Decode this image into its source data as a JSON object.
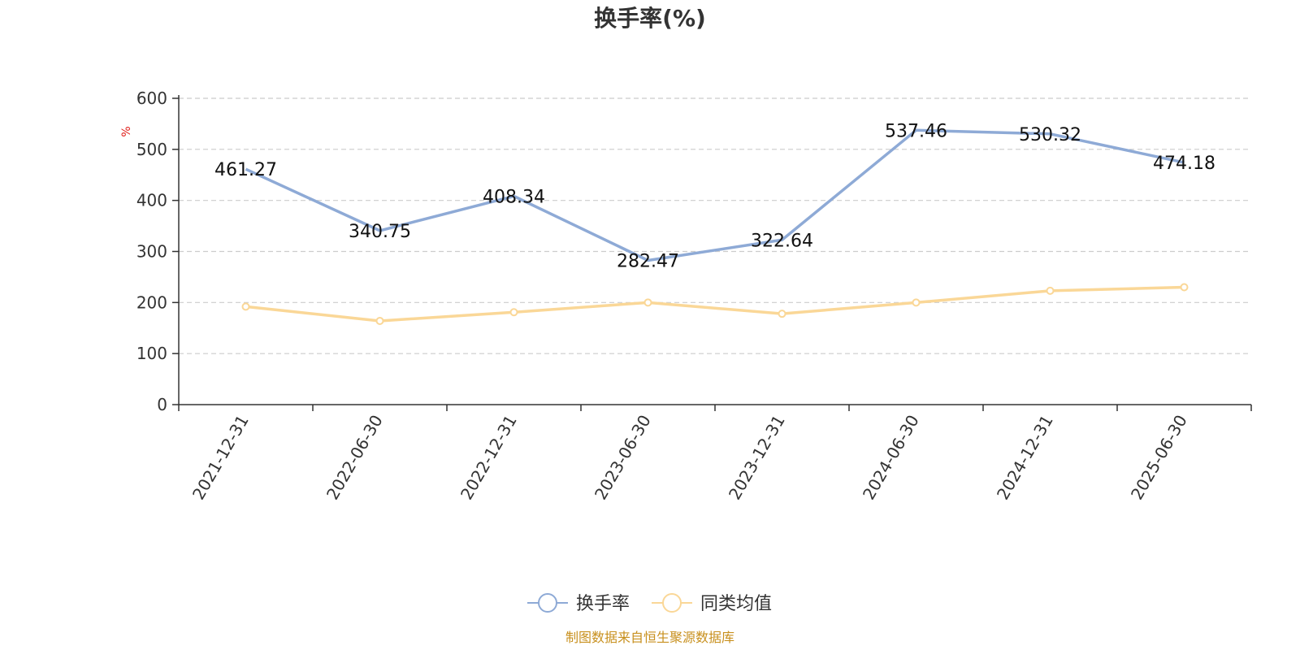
{
  "chart_data": {
    "type": "line",
    "title": "换手率(%)",
    "ylabel": "%",
    "ylim": [
      0,
      600
    ],
    "yticks": [
      0,
      100,
      200,
      300,
      400,
      500,
      600
    ],
    "categories": [
      "2021-12-31",
      "2022-06-30",
      "2022-12-31",
      "2023-06-30",
      "2023-12-31",
      "2024-06-30",
      "2024-12-31",
      "2025-06-30"
    ],
    "series": [
      {
        "name": "换手率",
        "color": "#8eaad6",
        "values": [
          461.27,
          340.75,
          408.34,
          282.47,
          322.64,
          537.46,
          530.32,
          474.18
        ],
        "labels": [
          "461.27",
          "340.75",
          "408.34",
          "282.47",
          "322.64",
          "537.46",
          "530.32",
          "474.18"
        ]
      },
      {
        "name": "同类均值",
        "color": "#fad797",
        "values": [
          192,
          164,
          181,
          200,
          178,
          200,
          223,
          230
        ]
      }
    ],
    "grid": "dashed horizontal",
    "legend_position": "bottom-center"
  },
  "source_text": "制图数据来自恒生聚源数据库"
}
